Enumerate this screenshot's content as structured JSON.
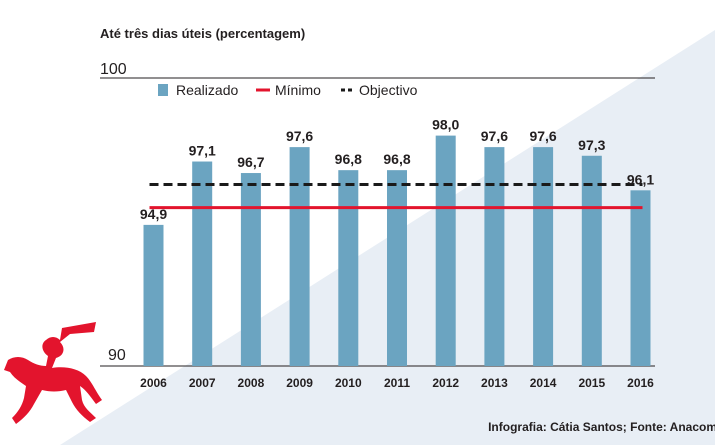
{
  "subtitle": "Até três dias úteis (percentagem)",
  "source": "Infografia: Cátia Santos; Fonte: Anacom",
  "logo": "horse-trumpeter-logo",
  "colors": {
    "bar": "#6ba4c1",
    "minimum": "#e3142d",
    "objective": "#1a1a1a",
    "background_wedge": "#e8eef5",
    "logo": "#e3142d"
  },
  "chart_data": {
    "type": "bar",
    "title": "",
    "xlabel": "",
    "ylabel": "",
    "ylim": [
      90,
      100
    ],
    "yticks": [
      "90",
      "100"
    ],
    "categories": [
      "2006",
      "2007",
      "2008",
      "2009",
      "2010",
      "2011",
      "2012",
      "2013",
      "2014",
      "2015",
      "2016"
    ],
    "series": [
      {
        "name": "Realizado",
        "type": "bar",
        "values": [
          94.9,
          97.1,
          96.7,
          97.6,
          96.8,
          96.8,
          98.0,
          97.6,
          97.6,
          97.3,
          96.1
        ]
      },
      {
        "name": "Mínimo",
        "type": "line",
        "value": 95.5
      },
      {
        "name": "Objectivo",
        "type": "dashed-line",
        "value": 96.3
      }
    ],
    "data_labels": [
      "94,9",
      "97,1",
      "96,7",
      "97,6",
      "96,8",
      "96,8",
      "98,0",
      "97,6",
      "97,6",
      "97,3",
      "96,1"
    ],
    "legend": [
      "Realizado",
      "Mínimo",
      "Objectivo"
    ]
  }
}
